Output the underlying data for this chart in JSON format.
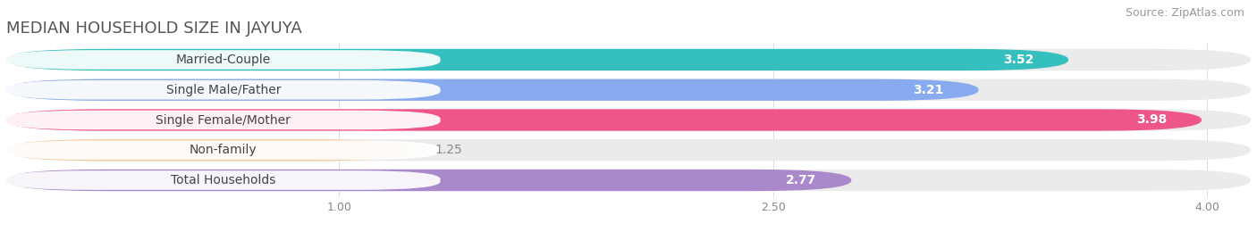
{
  "title": "MEDIAN HOUSEHOLD SIZE IN JAYUYA",
  "source": "Source: ZipAtlas.com",
  "categories": [
    "Married-Couple",
    "Single Male/Father",
    "Single Female/Mother",
    "Non-family",
    "Total Households"
  ],
  "values": [
    3.52,
    3.21,
    3.98,
    1.25,
    2.77
  ],
  "bar_colors": [
    "#36bfbf",
    "#88aaee",
    "#ee5588",
    "#f5c89a",
    "#aa88cc"
  ],
  "bar_bg_colors": [
    "#ebebeb",
    "#ebebeb",
    "#ebebeb",
    "#ebebeb",
    "#ebebeb"
  ],
  "label_text_color": "#444444",
  "value_color": "#ffffff",
  "xlim_min": -0.15,
  "xlim_max": 4.15,
  "xticks": [
    1.0,
    2.5,
    4.0
  ],
  "title_fontsize": 13,
  "source_fontsize": 9,
  "label_fontsize": 10,
  "value_fontsize": 10,
  "background_color": "#ffffff"
}
